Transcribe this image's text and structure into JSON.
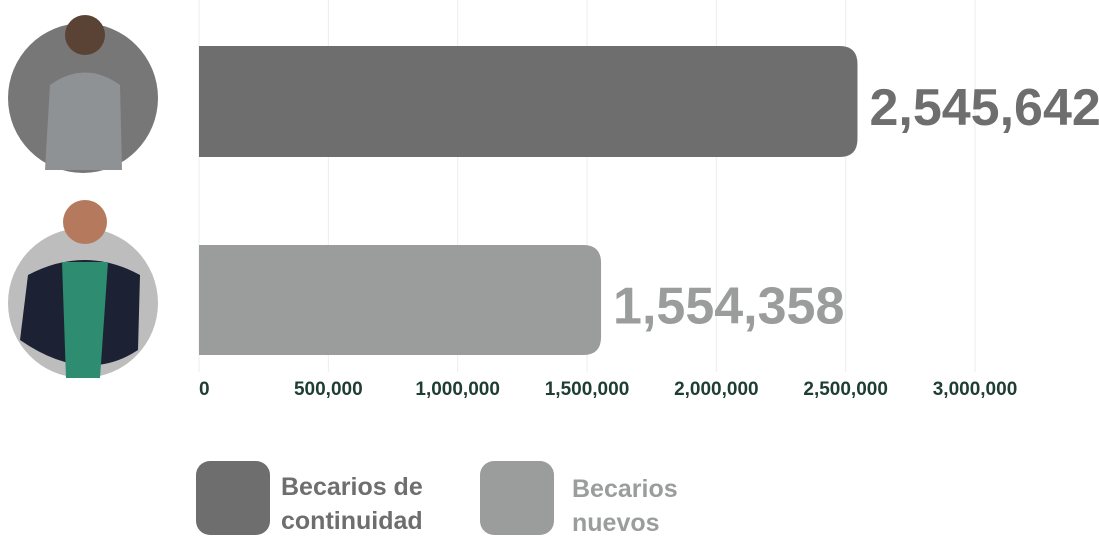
{
  "chart_data": {
    "type": "hbar",
    "series": [
      {
        "name": "Becarios de continuidad",
        "color": "#6d6e6d",
        "values": [
          2545642
        ],
        "value_labels": [
          "2,545,642"
        ]
      },
      {
        "name": "Becarios nuevos",
        "color": "#9a9d9c",
        "values": [
          1554358
        ],
        "value_labels": [
          "1,554,358"
        ]
      }
    ],
    "xlim": [
      0,
      3000000
    ],
    "xticks": [
      0,
      {
        "value": 500000,
        "label": "500,000"
      },
      {
        "value": 1000000,
        "label": "1,000,000"
      },
      {
        "value": 1500000,
        "label": "1,500,000"
      },
      {
        "value": 2000000,
        "label": "2,000,000"
      },
      {
        "value": 2500000,
        "label": "2,500,000"
      },
      {
        "value": 3000000,
        "label": "3,000,000"
      }
    ],
    "tick_color": "#1e3d33",
    "grid": true
  }
}
